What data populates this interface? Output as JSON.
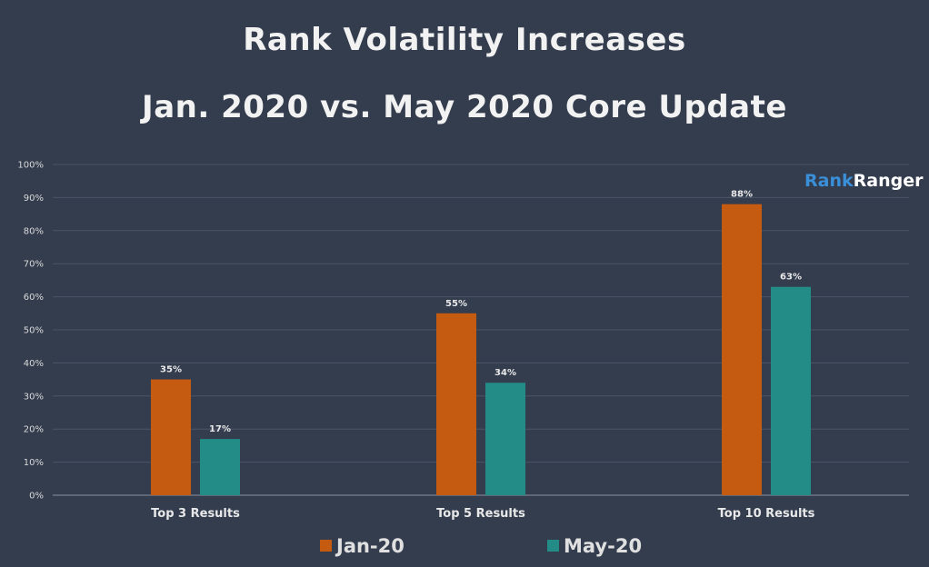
{
  "chart_data": {
    "type": "bar",
    "title": "Rank Volatility Increases",
    "subtitle": "Jan. 2020 vs. May 2020 Core Update",
    "categories": [
      "Top 3 Results",
      "Top 5 Results",
      "Top 10 Results"
    ],
    "series": [
      {
        "name": "Jan-20",
        "color": "#c55a11",
        "values": [
          35,
          55,
          88
        ],
        "labels": [
          "35%",
          "55%",
          "88%"
        ]
      },
      {
        "name": "May-20",
        "color": "#238c86",
        "values": [
          17,
          34,
          63
        ],
        "labels": [
          "17%",
          "34%",
          "63%"
        ]
      }
    ],
    "xlabel": "",
    "ylabel": "",
    "ylim": [
      0,
      100
    ],
    "yticks": [
      "0%",
      "10%",
      "20%",
      "30%",
      "40%",
      "50%",
      "60%",
      "70%",
      "80%",
      "90%",
      "100%"
    ],
    "grid": true,
    "legend_position": "bottom"
  },
  "branding": {
    "logo_part1": "Rank",
    "logo_part2": "Ranger"
  }
}
